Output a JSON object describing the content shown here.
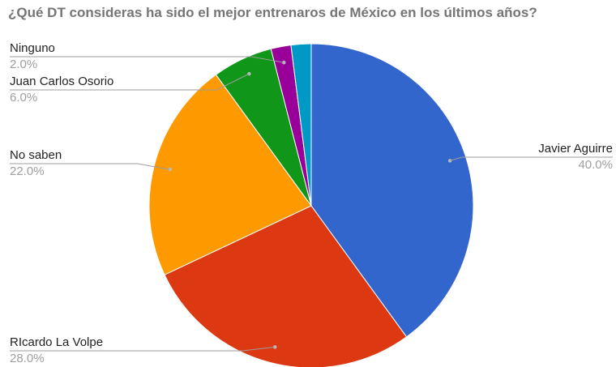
{
  "chart_data": {
    "type": "pie",
    "title": "¿Qué DT consideras ha sido el mejor entrenaros de México en los últimos años?",
    "slices": [
      {
        "label": "Javier Aguirre",
        "value": 40.0,
        "value_label": "40.0%",
        "color": "#3366cc"
      },
      {
        "label": "RIcardo La Volpe",
        "value": 28.0,
        "value_label": "28.0%",
        "color": "#dc3912"
      },
      {
        "label": "No saben",
        "value": 22.0,
        "value_label": "22.0%",
        "color": "#ff9900"
      },
      {
        "label": "Juan Carlos Osorio",
        "value": 6.0,
        "value_label": "6.0%",
        "color": "#109618"
      },
      {
        "label": "Ninguno",
        "value": 2.0,
        "value_label": "2.0%",
        "color": "#990099"
      },
      {
        "label": "",
        "value": 2.0,
        "value_label": "",
        "color": "#0099c6"
      }
    ],
    "start_angle": "12 o'clock",
    "direction": "clockwise",
    "legend": "labeled leader lines"
  }
}
